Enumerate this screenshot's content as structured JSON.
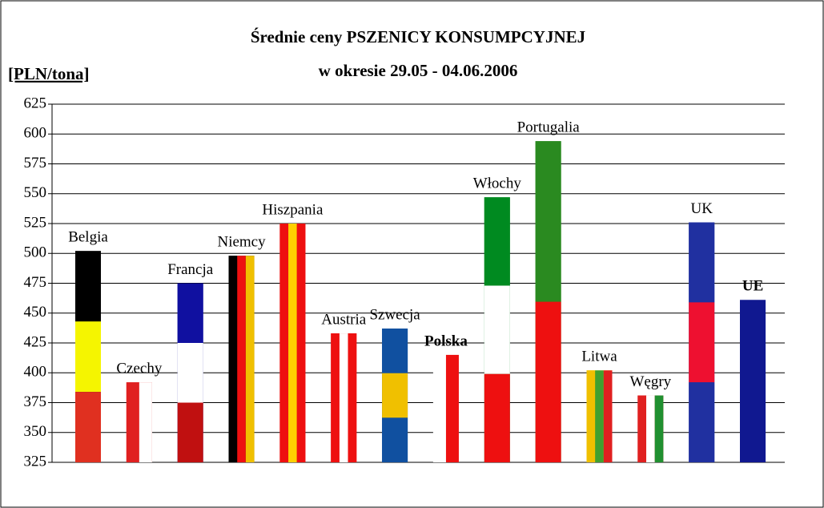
{
  "chart_data": {
    "type": "bar",
    "title": "Średnie ceny PSZENICY KONSUMPCYJNEJ",
    "subtitle": "w okresie 29.05 - 04.06.2006",
    "y_label": "[PLN/tona]",
    "categories": [
      "Belgia",
      "Czechy",
      "Francja",
      "Niemcy",
      "Hiszpania",
      "Austria",
      "Szwecja",
      "Polska",
      "Włochy",
      "Portugalia",
      "Litwa",
      "Węgry",
      "UK",
      "UE"
    ],
    "values": [
      502,
      392,
      475,
      498,
      525,
      433,
      437,
      415,
      547,
      594,
      402,
      381,
      526,
      461
    ],
    "bold": [
      false,
      false,
      false,
      false,
      false,
      false,
      false,
      true,
      false,
      false,
      false,
      false,
      false,
      true
    ],
    "stripes": [
      {
        "dir": "h",
        "colors": [
          "#000000",
          "#f5f500",
          "#e03020"
        ]
      },
      {
        "dir": "v",
        "colors": [
          "#e02020",
          "#ffffff"
        ]
      },
      {
        "dir": "h",
        "colors": [
          "#1010a0",
          "#ffffff",
          "#c01010"
        ]
      },
      {
        "dir": "v",
        "colors": [
          "#000000",
          "#ee1010",
          "#f0c000"
        ]
      },
      {
        "dir": "v",
        "colors": [
          "#ee1010",
          "#ffd000",
          "#ee1010"
        ]
      },
      {
        "dir": "v",
        "colors": [
          "#ee1010",
          "#ffffff",
          "#ee1010"
        ]
      },
      {
        "dir": "h",
        "colors": [
          "#1050a0",
          "#f0c000",
          "#1050a0"
        ]
      },
      {
        "dir": "v",
        "colors": [
          "#ffffff",
          "#ee1010"
        ]
      },
      {
        "dir": "h",
        "colors": [
          "#008a20",
          "#ffffff",
          "#ee1010"
        ]
      },
      {
        "dir": "h",
        "colors": [
          "#2a8a20",
          "#ee1010"
        ]
      },
      {
        "dir": "v",
        "colors": [
          "#f0c000",
          "#40a030",
          "#e02020"
        ]
      },
      {
        "dir": "v",
        "colors": [
          "#e02020",
          "#ffffff",
          "#209030"
        ]
      },
      {
        "dir": "h",
        "colors": [
          "#2030a0",
          "#ee1030",
          "#2030a0"
        ]
      },
      {
        "dir": "v",
        "colors": [
          "#101890"
        ]
      }
    ],
    "ylim": [
      325,
      625
    ],
    "yticks": [
      325,
      350,
      375,
      400,
      425,
      450,
      475,
      500,
      525,
      550,
      575,
      600,
      625
    ],
    "grid": true
  }
}
